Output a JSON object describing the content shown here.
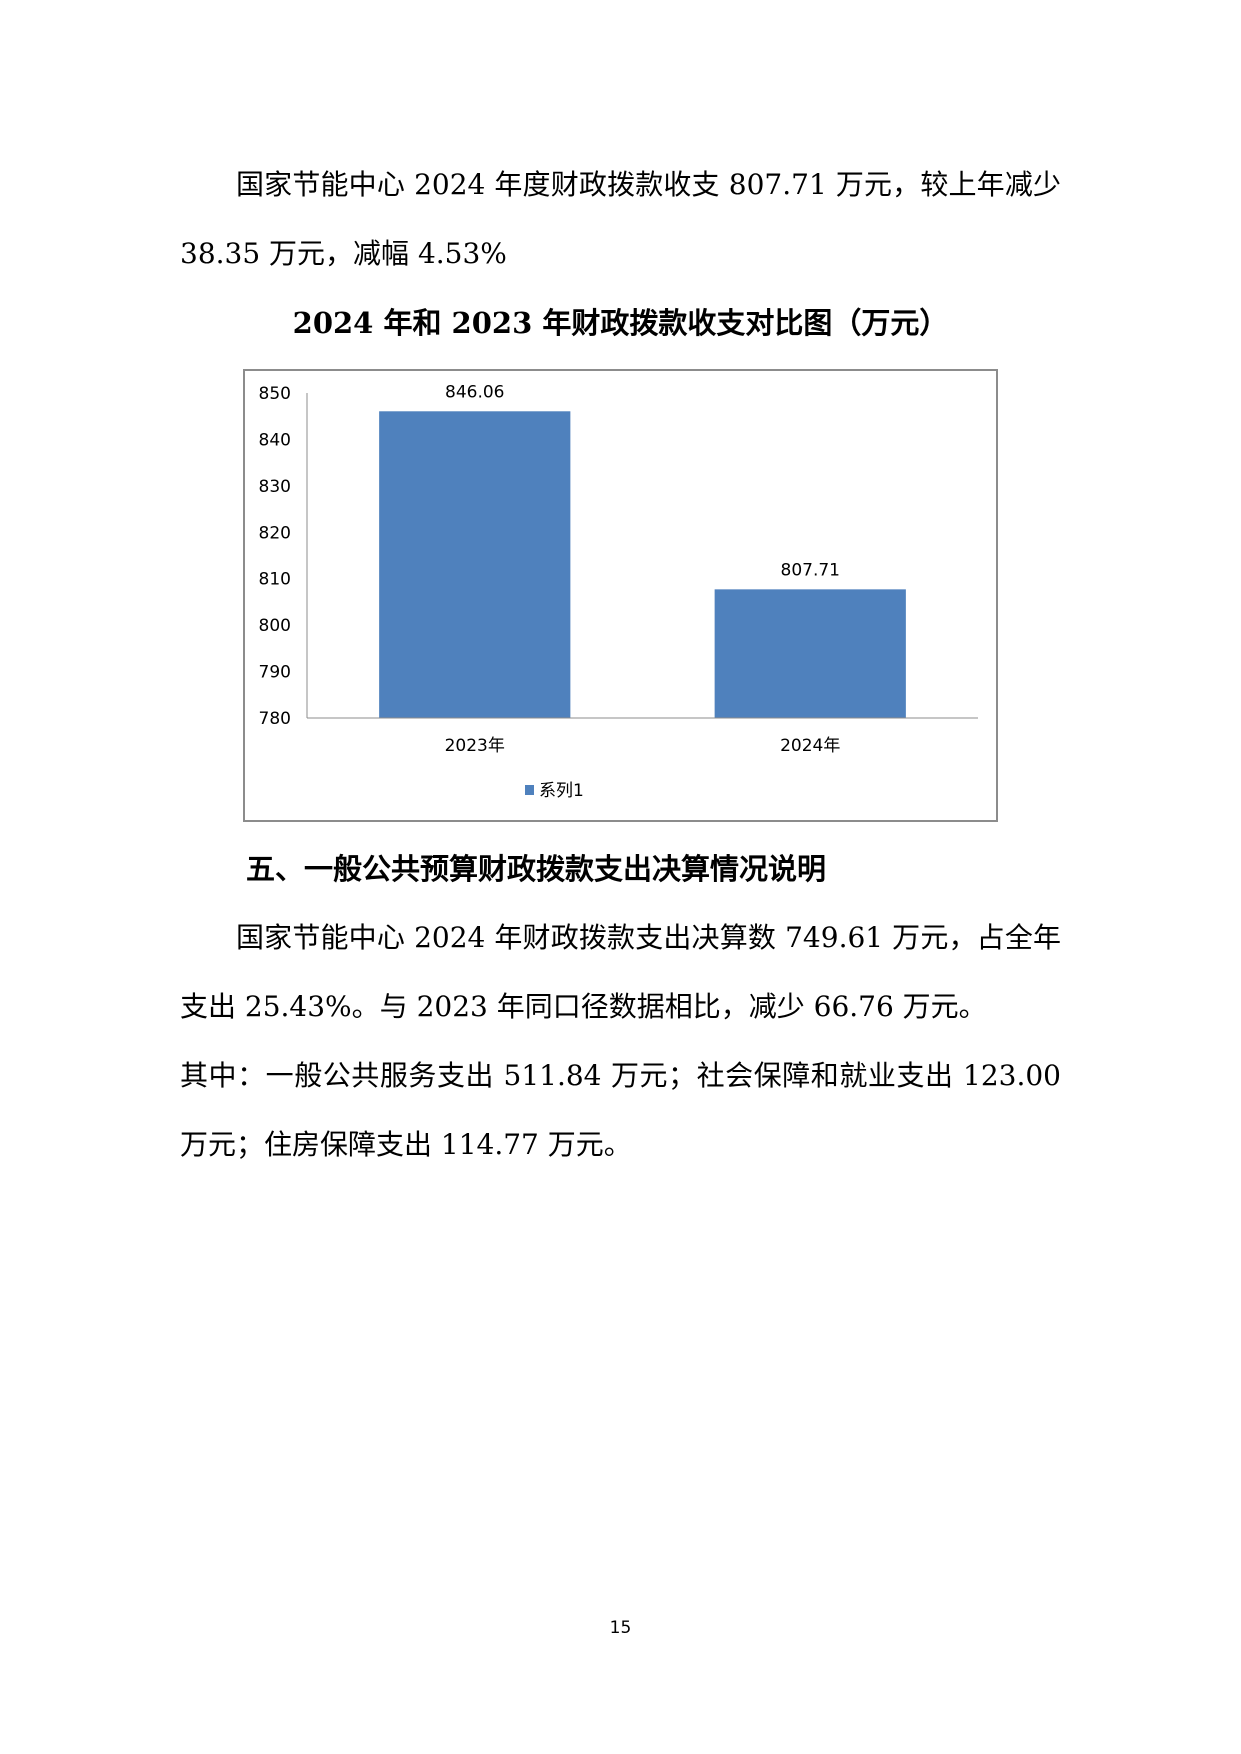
{
  "paragraph1": "国家节能中心 2024 年度财政拨款收支 807.71 万元，较上年减少 38.35 万元，减幅 4.53%",
  "chart_title": "2024 年和 2023 年财政拨款收支对比图（万元）",
  "chart_data": {
    "type": "bar",
    "title": "2024 年和 2023 年财政拨款收支对比图（万元）",
    "categories": [
      "2023年",
      "2024年"
    ],
    "series": [
      {
        "name": "系列1",
        "values": [
          846.06,
          807.71
        ]
      }
    ],
    "data_labels": [
      "846.06",
      "807.71"
    ],
    "ylim": [
      780,
      850
    ],
    "yticks": [
      "780",
      "790",
      "800",
      "810",
      "820",
      "830",
      "840",
      "850"
    ],
    "grid": false,
    "legend": "bottom",
    "bar_color": "#4f81bd"
  },
  "heading": "五、一般公共预算财政拨款支出决算情况说明",
  "paragraph2": "国家节能中心 2024 年财政拨款支出决算数 749.61 万元，占全年支出 25.43%。与 2023 年同口径数据相比，减少 66.76 万元。",
  "paragraph3": "其中：一般公共服务支出 511.84 万元；社会保障和就业支出 123.00 万元；住房保障支出 114.77 万元。",
  "page_number": "15"
}
